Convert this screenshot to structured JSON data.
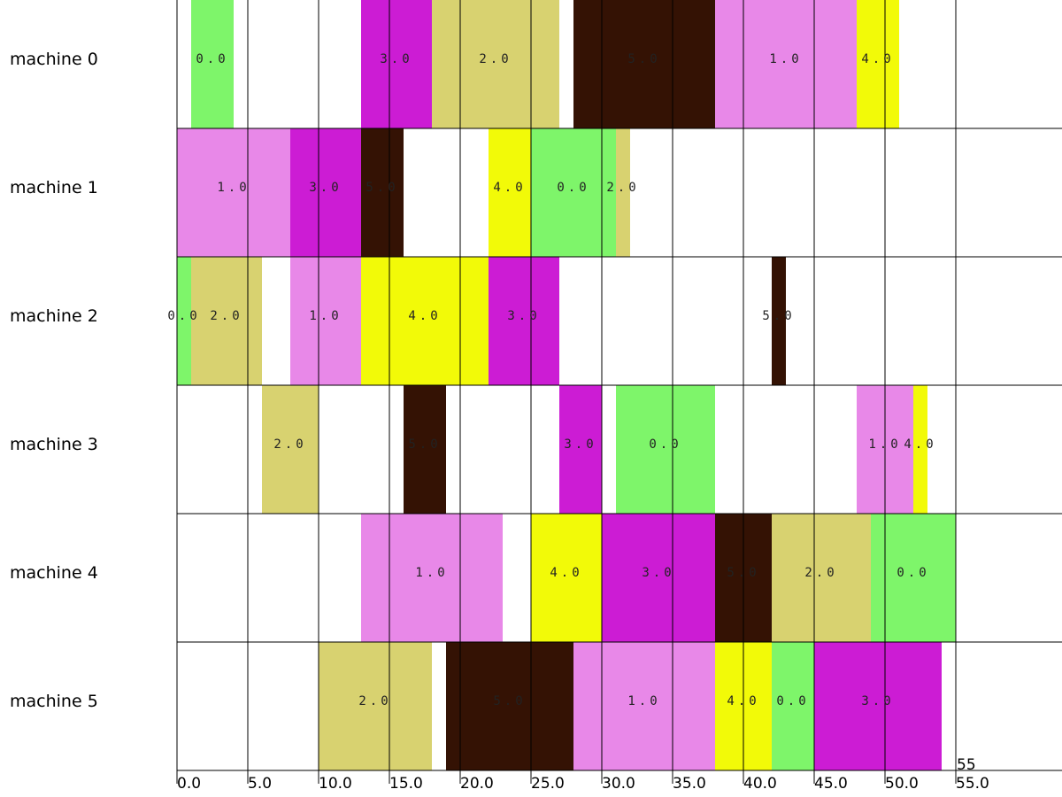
{
  "chart_data": {
    "type": "gantt",
    "x_range": [
      0,
      55
    ],
    "x_ticks": [
      {
        "value": 0,
        "label": "0.0"
      },
      {
        "value": 5,
        "label": "5.0"
      },
      {
        "value": 10,
        "label": "10.0"
      },
      {
        "value": 15,
        "label": "15.0"
      },
      {
        "value": 20,
        "label": "20.0"
      },
      {
        "value": 25,
        "label": "25.0"
      },
      {
        "value": 30,
        "label": "30.0"
      },
      {
        "value": 35,
        "label": "35.0"
      },
      {
        "value": 40,
        "label": "40.0"
      },
      {
        "value": 45,
        "label": "45.0"
      },
      {
        "value": 50,
        "label": "50.0"
      },
      {
        "value": 55,
        "label": "55.0"
      }
    ],
    "makespan_label": "55",
    "job_colors": {
      "0": "#7ef56a",
      "1": "#e888e8",
      "2": "#d8d270",
      "3": "#cc1cd4",
      "4": "#f2fa08",
      "5": "#341204"
    },
    "machines": [
      {
        "label": "machine 0",
        "tasks": [
          {
            "job": "0",
            "label": "0.0",
            "start": 1,
            "end": 4
          },
          {
            "job": "3",
            "label": "3.0",
            "start": 13,
            "end": 18
          },
          {
            "job": "2",
            "label": "2.0",
            "start": 18,
            "end": 27
          },
          {
            "job": "5",
            "label": "5.0",
            "start": 28,
            "end": 38
          },
          {
            "job": "1",
            "label": "1.0",
            "start": 38,
            "end": 48
          },
          {
            "job": "4",
            "label": "4.0",
            "start": 48,
            "end": 51
          }
        ]
      },
      {
        "label": "machine 1",
        "tasks": [
          {
            "job": "1",
            "label": "1.0",
            "start": 0,
            "end": 8
          },
          {
            "job": "3",
            "label": "3.0",
            "start": 8,
            "end": 13
          },
          {
            "job": "5",
            "label": "5.0",
            "start": 13,
            "end": 16
          },
          {
            "job": "4",
            "label": "4.0",
            "start": 22,
            "end": 25
          },
          {
            "job": "0",
            "label": "0.0",
            "start": 25,
            "end": 31
          },
          {
            "job": "2",
            "label": "2.0",
            "start": 31,
            "end": 32
          }
        ]
      },
      {
        "label": "machine 2",
        "tasks": [
          {
            "job": "0",
            "label": "0.0",
            "start": 0,
            "end": 1
          },
          {
            "job": "2",
            "label": "2.0",
            "start": 1,
            "end": 6
          },
          {
            "job": "1",
            "label": "1.0",
            "start": 8,
            "end": 13
          },
          {
            "job": "4",
            "label": "4.0",
            "start": 13,
            "end": 22
          },
          {
            "job": "3",
            "label": "3.0",
            "start": 22,
            "end": 27
          },
          {
            "job": "5",
            "label": "5.0",
            "start": 42,
            "end": 43
          }
        ]
      },
      {
        "label": "machine 3",
        "tasks": [
          {
            "job": "2",
            "label": "2.0",
            "start": 6,
            "end": 10
          },
          {
            "job": "5",
            "label": "5.0",
            "start": 16,
            "end": 19
          },
          {
            "job": "3",
            "label": "3.0",
            "start": 27,
            "end": 30
          },
          {
            "job": "0",
            "label": "0.0",
            "start": 31,
            "end": 38
          },
          {
            "job": "1",
            "label": "1.0",
            "start": 48,
            "end": 52
          },
          {
            "job": "4",
            "label": "4.0",
            "start": 52,
            "end": 53
          }
        ]
      },
      {
        "label": "machine 4",
        "tasks": [
          {
            "job": "1",
            "label": "1.0",
            "start": 13,
            "end": 23
          },
          {
            "job": "4",
            "label": "4.0",
            "start": 25,
            "end": 30
          },
          {
            "job": "3",
            "label": "3.0",
            "start": 30,
            "end": 38
          },
          {
            "job": "5",
            "label": "5.0",
            "start": 38,
            "end": 42
          },
          {
            "job": "2",
            "label": "2.0",
            "start": 42,
            "end": 49
          },
          {
            "job": "0",
            "label": "0.0",
            "start": 49,
            "end": 55
          }
        ]
      },
      {
        "label": "machine 5",
        "tasks": [
          {
            "job": "2",
            "label": "2.0",
            "start": 10,
            "end": 18
          },
          {
            "job": "5",
            "label": "5.0",
            "start": 19,
            "end": 28
          },
          {
            "job": "1",
            "label": "1.0",
            "start": 28,
            "end": 38
          },
          {
            "job": "4",
            "label": "4.0",
            "start": 38,
            "end": 42
          },
          {
            "job": "0",
            "label": "0.0",
            "start": 42,
            "end": 45
          },
          {
            "job": "3",
            "label": "3.0",
            "start": 45,
            "end": 54
          }
        ]
      }
    ]
  }
}
